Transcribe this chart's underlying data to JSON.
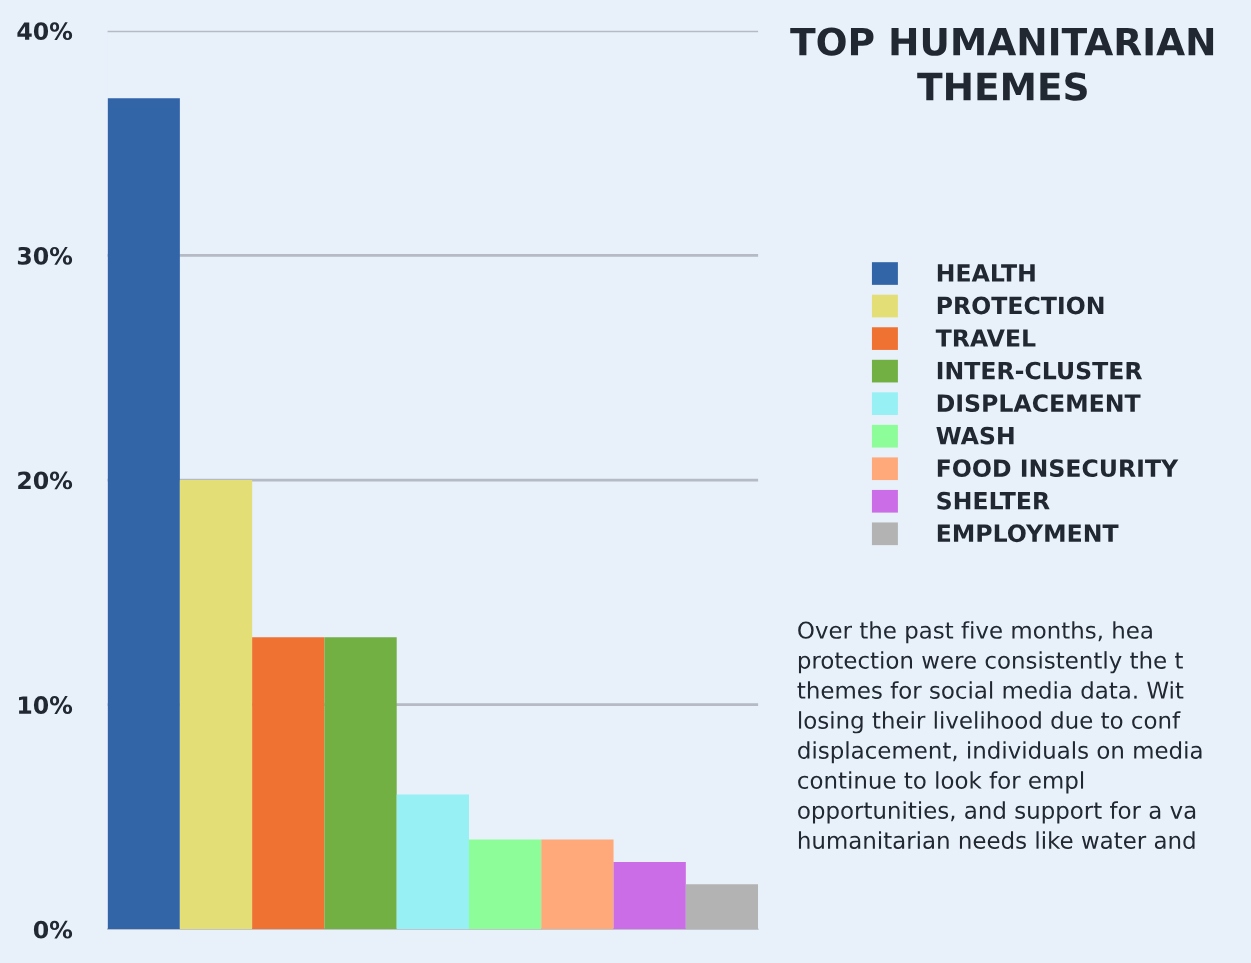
{
  "chart_data": {
    "type": "bar",
    "title": "TOP HUMANITARIAN\nTHEMES",
    "categories": [
      null
    ],
    "series": [
      {
        "name": "HEALTH",
        "color": "#3165a8",
        "values": [
          37
        ]
      },
      {
        "name": "PROTECTION",
        "color": "#e4de76",
        "values": [
          20
        ]
      },
      {
        "name": "TRAVEL",
        "color": "#ef7232",
        "values": [
          13
        ]
      },
      {
        "name": "INTER-CLUSTER",
        "color": "#72b043",
        "values": [
          13
        ]
      },
      {
        "name": "DISPLACEMENT",
        "color": "#97f0f3",
        "values": [
          6
        ]
      },
      {
        "name": "WASH",
        "color": "#8cfd98",
        "values": [
          4
        ]
      },
      {
        "name": "FOOD INSECURITY",
        "color": "#ffa97a",
        "values": [
          4
        ]
      },
      {
        "name": "SHELTER",
        "color": "#ca6de6",
        "values": [
          3
        ]
      },
      {
        "name": "EMPLOYMENT",
        "color": "#b3b3b3",
        "values": [
          2
        ]
      }
    ],
    "ylim": [
      0,
      40
    ],
    "yticks": [
      {
        "value": 0,
        "label": "0%"
      },
      {
        "value": 10,
        "label": "10%"
      },
      {
        "value": 20,
        "label": "20%"
      },
      {
        "value": 30,
        "label": "30%"
      },
      {
        "value": 40,
        "label": "40%"
      }
    ],
    "grid": "y",
    "legend": "right",
    "tick_labels": "y",
    "annotations": [
      "Over the past five months, hea protection were consistently the t themes for social media data. Wit losing their livelihood due to conf displacement, individuals on media continue to look for empl opportunities, and support for a va humanitarian needs like water and"
    ]
  }
}
